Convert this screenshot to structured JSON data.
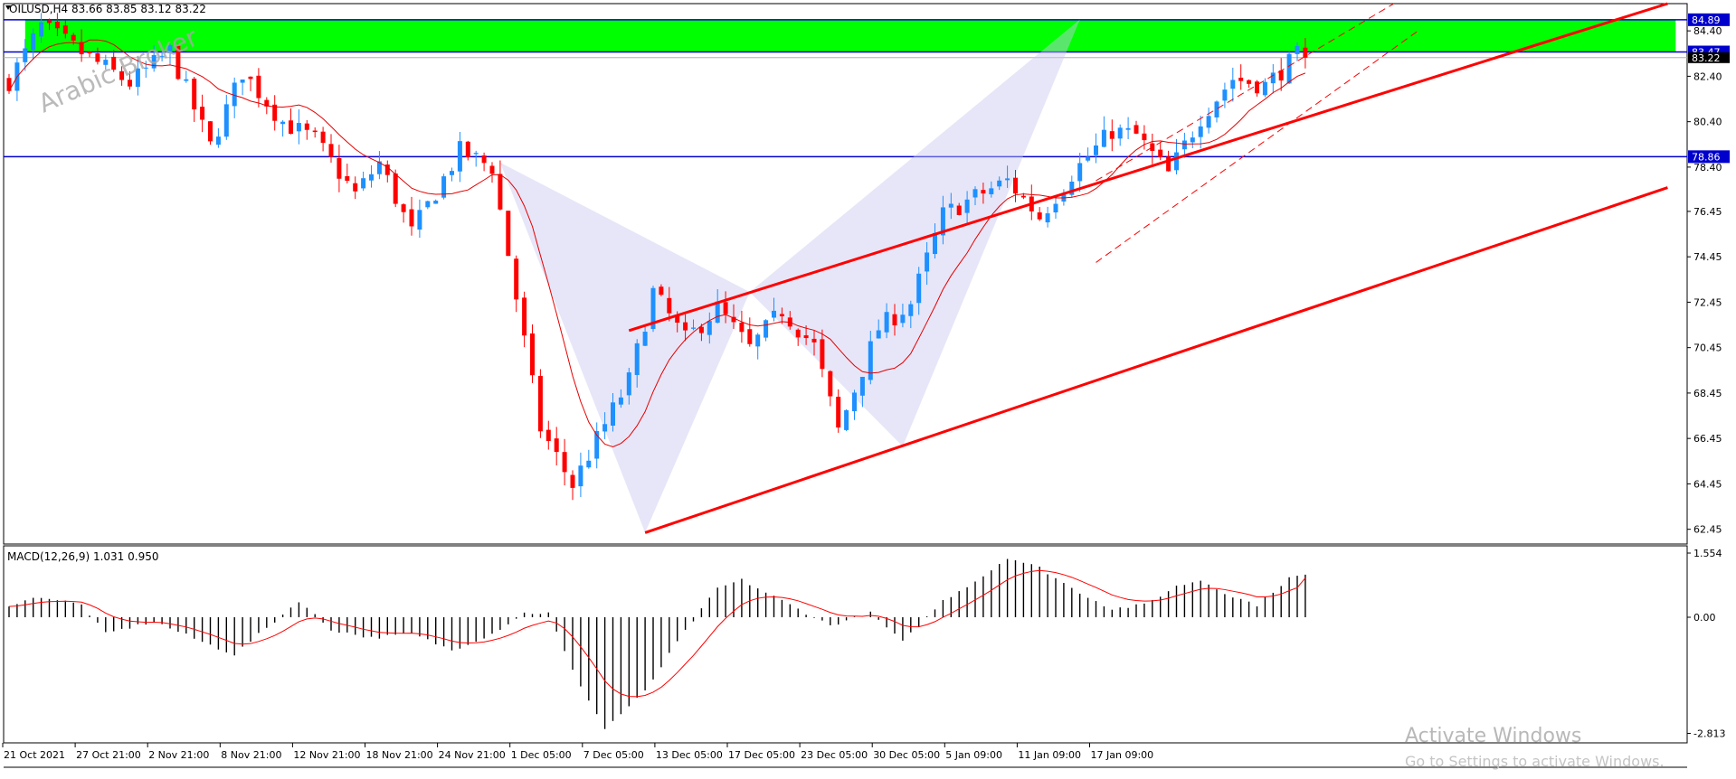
{
  "window": {
    "symbol_header": "OILUSD,H4  83.66 83.85 83.12 83.22",
    "watermark": "Arabic Broker",
    "activate_title": "Activate Windows",
    "activate_subtitle": "Go to Settings to activate Windows."
  },
  "colors": {
    "bull": "#1e90ff",
    "bear": "#ff0000",
    "ma": "#e60000",
    "trend": "#ff0000",
    "hline": "#0000cd",
    "zone": "#00ff00",
    "pattern": "#c8c8f0",
    "histogram": "#000000",
    "signal": "#ff0000",
    "price_badge": "#0000cd"
  },
  "chart_data": [
    {
      "type": "candlestick",
      "title": "OILUSD,H4",
      "ohlc_last": {
        "open": 83.66,
        "high": 83.85,
        "low": 83.12,
        "close": 83.22
      },
      "ylim": [
        61.8,
        85.6
      ],
      "y_ticks": [
        84.4,
        82.4,
        80.4,
        78.4,
        76.45,
        74.45,
        72.45,
        70.45,
        68.45,
        66.45,
        64.45,
        62.45
      ],
      "y_tick_labels": [
        "84.40",
        "82.40",
        "80.40",
        "78.40",
        "76.45",
        "74.45",
        "72.45",
        "70.45",
        "68.45",
        "66.45",
        "64.45",
        "62.45"
      ],
      "x_ticks": [
        0,
        9,
        18,
        27,
        36,
        45,
        54,
        63,
        72,
        81,
        90,
        99,
        108,
        117,
        126,
        135
      ],
      "x_tick_labels": [
        "21 Oct 2021",
        "27 Oct 21:00",
        "2 Nov 21:00",
        "8 Nov 21:00",
        "12 Nov 21:00",
        "18 Nov 21:00",
        "24 Nov 21:00",
        "1 Dec 05:00",
        "7 Dec 05:00",
        "13 Dec 05:00",
        "17 Dec 05:00",
        "23 Dec 05:00",
        "30 Dec 05:00",
        "5 Jan 09:00",
        "11 Jan 09:00",
        "17 Jan 09:00"
      ],
      "bar_count": 180,
      "anchors": [
        [
          0,
          82.2
        ],
        [
          4,
          84.6
        ],
        [
          10,
          83.2
        ],
        [
          15,
          82.1
        ],
        [
          20,
          83.5
        ],
        [
          25,
          79.3
        ],
        [
          29,
          82.6
        ],
        [
          34,
          80.4
        ],
        [
          38,
          79.6
        ],
        [
          43,
          77.2
        ],
        [
          46,
          78.6
        ],
        [
          50,
          75.5
        ],
        [
          56,
          79.1
        ],
        [
          60,
          78.4
        ],
        [
          66,
          66.9
        ],
        [
          70,
          64.4
        ],
        [
          73,
          66.4
        ],
        [
          77,
          69.0
        ],
        [
          80,
          72.9
        ],
        [
          84,
          70.8
        ],
        [
          88,
          72.2
        ],
        [
          92,
          70.4
        ],
        [
          96,
          72.1
        ],
        [
          100,
          70.5
        ],
        [
          103,
          66.8
        ],
        [
          108,
          71.3
        ],
        [
          112,
          72.4
        ],
        [
          116,
          76.3
        ],
        [
          120,
          77.1
        ],
        [
          124,
          77.8
        ],
        [
          128,
          76.2
        ],
        [
          132,
          78.1
        ],
        [
          137,
          80.0
        ],
        [
          140,
          79.8
        ],
        [
          144,
          78.1
        ],
        [
          148,
          80.6
        ],
        [
          152,
          82.3
        ],
        [
          156,
          82.0
        ],
        [
          160,
          83.3
        ],
        [
          161,
          83.2
        ]
      ],
      "ma_period": 10,
      "ma_name": "",
      "horizontal_levels": [
        84.89,
        83.47,
        78.86
      ],
      "level_labels": [
        "84.89",
        "83.47",
        "78.86"
      ],
      "current_price_label": "83.22",
      "supply_zone": {
        "price_from": 83.47,
        "price_to": 84.89,
        "bar_from": 2,
        "bar_to": 207
      },
      "harmonic_pattern": [
        [
          61,
          78.6
        ],
        [
          79,
          62.3
        ],
        [
          92,
          72.9
        ],
        [
          111,
          66.1
        ],
        [
          133,
          84.9
        ]
      ],
      "channel_lines": [
        {
          "from": [
            77,
            71.2
          ],
          "to": [
            206,
            85.6
          ],
          "dashed": false
        },
        {
          "from": [
            79,
            62.3
          ],
          "to": [
            206,
            77.5
          ],
          "dashed": false
        },
        {
          "from": [
            135,
            74.2
          ],
          "to": [
            175,
            84.4
          ],
          "dashed": true
        },
        {
          "from": [
            135,
            77.8
          ],
          "to": [
            172,
            85.6
          ],
          "dashed": true
        }
      ]
    },
    {
      "type": "histogram",
      "title": "MACD(12,26,9) 1.031 0.950",
      "indicator": "MACD",
      "parameters": [
        12,
        26,
        9
      ],
      "values_last": {
        "macd": 1.031,
        "signal": 0.95
      },
      "ylim": [
        -2.813,
        1.554
      ],
      "y_ticks": [
        1.554,
        0.0,
        -2.813
      ],
      "y_tick_labels": [
        "1.554",
        "0.00",
        "-2.813"
      ],
      "anchors": [
        [
          0,
          0.3
        ],
        [
          4,
          0.5
        ],
        [
          9,
          0.3
        ],
        [
          12,
          -0.4
        ],
        [
          18,
          -0.1
        ],
        [
          24,
          -0.6
        ],
        [
          28,
          -0.9
        ],
        [
          33,
          -0.1
        ],
        [
          36,
          0.4
        ],
        [
          40,
          -0.3
        ],
        [
          45,
          -0.5
        ],
        [
          50,
          -0.4
        ],
        [
          55,
          -0.8
        ],
        [
          60,
          -0.4
        ],
        [
          64,
          0.1
        ],
        [
          67,
          0.1
        ],
        [
          70,
          -1.3
        ],
        [
          74,
          -2.7
        ],
        [
          79,
          -1.8
        ],
        [
          83,
          -0.6
        ],
        [
          88,
          0.7
        ],
        [
          91,
          0.9
        ],
        [
          96,
          0.4
        ],
        [
          102,
          -0.2
        ],
        [
          107,
          0.1
        ],
        [
          111,
          -0.6
        ],
        [
          116,
          0.4
        ],
        [
          121,
          1.0
        ],
        [
          124,
          1.45
        ],
        [
          128,
          1.2
        ],
        [
          132,
          0.7
        ],
        [
          137,
          0.2
        ],
        [
          141,
          0.3
        ],
        [
          145,
          0.75
        ],
        [
          148,
          0.9
        ],
        [
          152,
          0.5
        ],
        [
          155,
          0.3
        ],
        [
          159,
          0.95
        ],
        [
          161,
          1.03
        ]
      ]
    }
  ]
}
